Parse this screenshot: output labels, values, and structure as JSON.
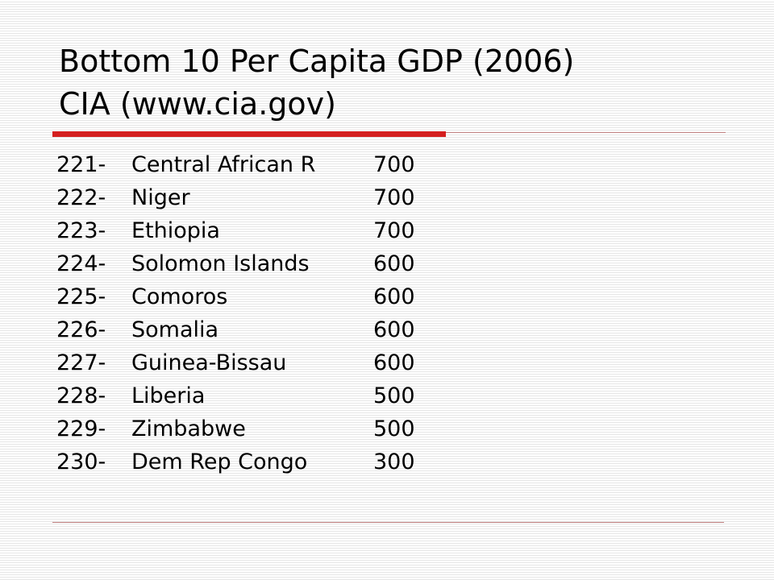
{
  "header": {
    "title_lines": [
      "Bottom 10 Per Capita GDP (2006)",
      "CIA (www.cia.gov)"
    ]
  },
  "table": {
    "rows": [
      [
        "221-",
        "Central African R",
        700
      ],
      [
        "222-",
        "Niger",
        700
      ],
      [
        "223-",
        "Ethiopia",
        700
      ],
      [
        "224-",
        "Solomon Islands",
        600
      ],
      [
        "225-",
        "Comoros",
        600
      ],
      [
        "226-",
        "Somalia",
        600
      ],
      [
        "227-",
        "Guinea-Bissau",
        600
      ],
      [
        "228-",
        "Liberia",
        500
      ],
      [
        "229-",
        "Zimbabwe",
        500
      ],
      [
        "230-",
        "Dem Rep Congo",
        300
      ]
    ]
  }
}
